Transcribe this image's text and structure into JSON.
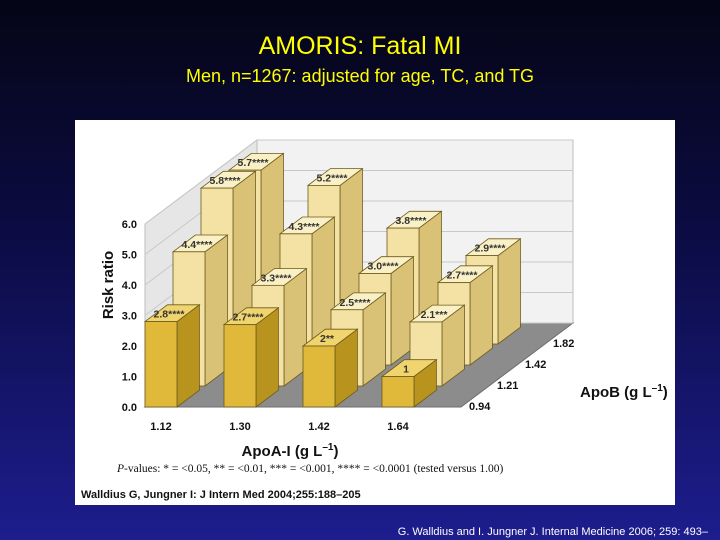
{
  "slide": {
    "title": "AMORIS: Fatal MI",
    "subtitle": "Men, n=1267: adjusted for age, TC, and TG",
    "footer": "G. Walldius and I. Jungner J. Internal Medicine 2006; 259: 493–"
  },
  "colors": {
    "background": "#0c0c46",
    "title": "#ffff00",
    "bar_front_row": "#e0b93a",
    "bar_back_rows": "#f3e2a4",
    "floor": "#8c8c8c"
  },
  "chart_data": {
    "type": "bar",
    "subtype": "3d-grouped",
    "ylabel": "Risk ratio",
    "xlabel_prefix": "ApoA-I (g L",
    "xlabel_exp": "–1",
    "xlabel_suffix": ")",
    "zlabel_prefix": "ApoB (g L",
    "zlabel_exp": "–1",
    "zlabel_suffix": ")",
    "categories": [
      "1.12",
      "1.30",
      "1.42",
      "1.64"
    ],
    "ylim": [
      0,
      6.0
    ],
    "y_ticks": [
      "0.0",
      "1.0",
      "2.0",
      "3.0",
      "4.0",
      "5.0",
      "6.0"
    ],
    "series": [
      {
        "name": "0.94",
        "values": [
          2.8,
          2.7,
          2,
          1
        ],
        "labels": [
          "2.8****",
          "2.7****",
          "2**",
          "1"
        ]
      },
      {
        "name": "1.21",
        "values": [
          4.4,
          3.3,
          2.5,
          2.1
        ],
        "labels": [
          "4.4****",
          "3.3****",
          "2.5****",
          "2.1***"
        ]
      },
      {
        "name": "1.42",
        "values": [
          5.8,
          4.3,
          3.0,
          2.7
        ],
        "labels": [
          "5.8****",
          "4.3****",
          "3.0****",
          "2.7****"
        ]
      },
      {
        "name": "1.82",
        "values": [
          5.7,
          5.2,
          3.8,
          2.9
        ],
        "labels": [
          "5.7****",
          "5.2****",
          "3.8****",
          "2.9****"
        ]
      }
    ],
    "pvalue_note_prefix": "P",
    "pvalue_note": "-values: * = <0.05, ** = <0.01, *** = <0.001, **** = <0.0001 (tested versus 1.00)",
    "citation": "Walldius G, Jungner I: J Intern Med 2004;255:188–205",
    "grid": true
  }
}
